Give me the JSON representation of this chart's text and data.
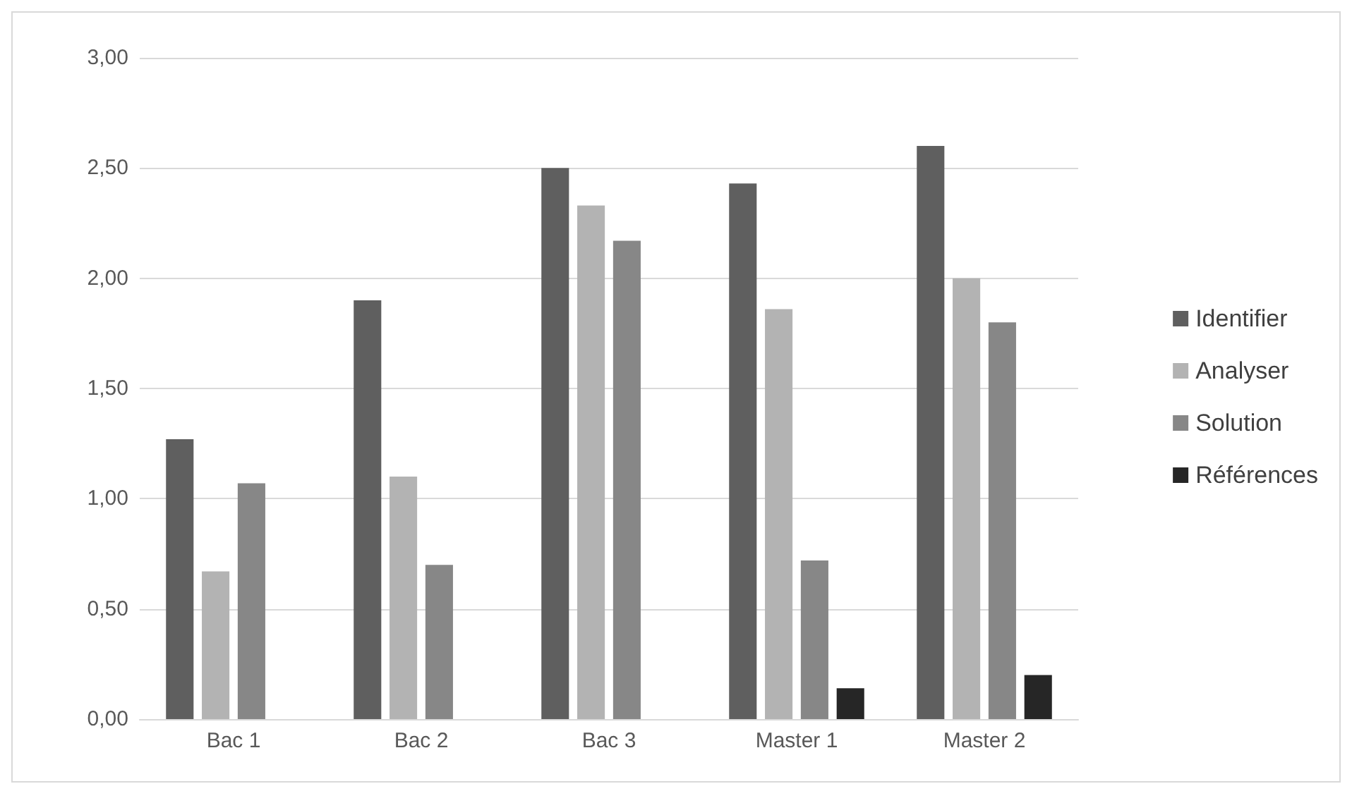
{
  "chart_data": {
    "type": "bar",
    "categories": [
      "Bac 1",
      "Bac 2",
      "Bac 3",
      "Master 1",
      "Master 2"
    ],
    "series": [
      {
        "name": "Identifier",
        "color": "#5f5f5f",
        "values": [
          1.27,
          1.9,
          2.5,
          2.43,
          2.6
        ]
      },
      {
        "name": "Analyser",
        "color": "#b3b3b3",
        "values": [
          0.67,
          1.1,
          2.33,
          1.86,
          2.0
        ]
      },
      {
        "name": "Solution",
        "color": "#878787",
        "values": [
          1.07,
          0.7,
          2.17,
          0.72,
          1.8
        ]
      },
      {
        "name": "Références",
        "color": "#262626",
        "values": [
          0,
          0,
          0,
          0.14,
          0.2
        ]
      }
    ],
    "ylim": [
      0,
      3
    ],
    "yticks": [
      {
        "value": 0,
        "label": "0,00"
      },
      {
        "value": 0.5,
        "label": "0,50"
      },
      {
        "value": 1,
        "label": "1,00"
      },
      {
        "value": 1.5,
        "label": "1,50"
      },
      {
        "value": 2,
        "label": "2,00"
      },
      {
        "value": 2.5,
        "label": "2,50"
      },
      {
        "value": 3,
        "label": "3,00"
      }
    ],
    "grid": "y",
    "legend": "right"
  }
}
